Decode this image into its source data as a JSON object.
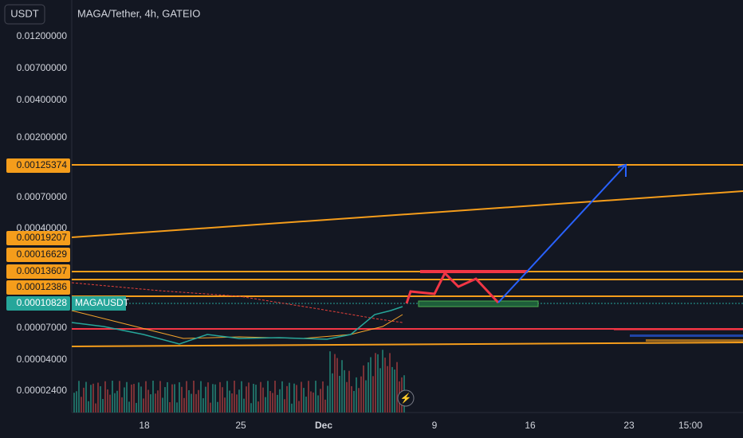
{
  "header": {
    "currency": "USDT",
    "symbol": "MAGA/Tether, 4h, GATEIO"
  },
  "price_axis": [
    "0.01200000",
    "0.00700000",
    "0.00400000",
    "0.00200000",
    "0.00070000",
    "0.00040000",
    "0.00007000",
    "0.00004000",
    "0.00002400"
  ],
  "price_tags": [
    "0.00125374",
    "0.00019207",
    "0.00016629",
    "0.00013607",
    "0.00012386"
  ],
  "current_price": {
    "value": "0.00010828",
    "symbol": "MAGAUSDT"
  },
  "time_axis": [
    "18",
    "25",
    "Dec",
    "9",
    "16",
    "23",
    "15:00"
  ]
}
